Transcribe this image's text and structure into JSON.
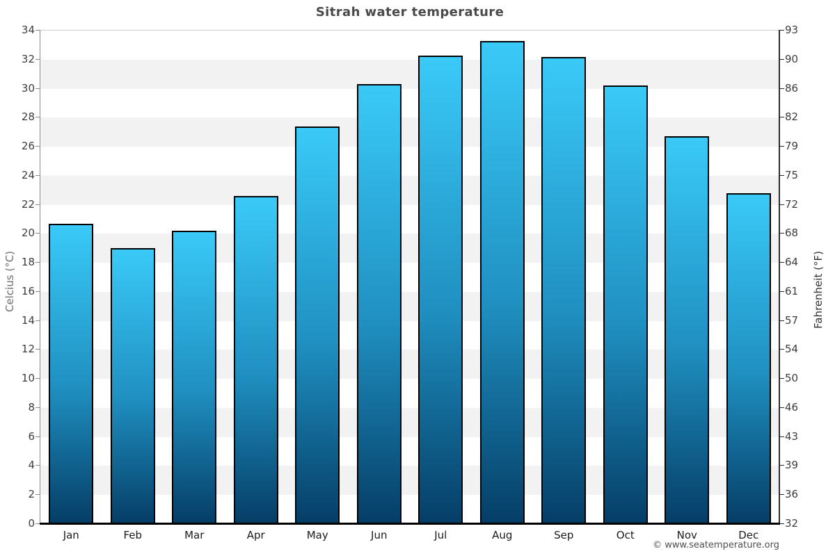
{
  "title": "Sitrah water temperature",
  "footer": {
    "credit": "© www.seatemperature.org"
  },
  "axes": {
    "left": {
      "label": "Celcius (°C)"
    },
    "right": {
      "label": "Fahrenheit (°F)"
    }
  },
  "colors": {
    "bar_gradient_top": "#3acaf8",
    "bar_gradient_mid": "#1f8fc0",
    "bar_gradient_bottom": "#053e67",
    "bar_border": "#000000",
    "band_gray": "#f2f2f2",
    "band_white": "#ffffff",
    "title_text": "#4a4a4a",
    "tick_text": "#3c3c3c",
    "bottom_axis": "#000000"
  },
  "chart_data": {
    "type": "bar",
    "title": "Sitrah water temperature",
    "categories": [
      "Jan",
      "Feb",
      "Mar",
      "Apr",
      "May",
      "Jun",
      "Jul",
      "Aug",
      "Sep",
      "Oct",
      "Nov",
      "Dec"
    ],
    "series": [
      {
        "name": "Water temperature (°C)",
        "values": [
          20.7,
          19.0,
          20.2,
          22.6,
          27.4,
          30.3,
          32.3,
          33.3,
          32.2,
          30.2,
          26.7,
          22.8
        ]
      }
    ],
    "xlabel": "",
    "ylabel_left": "Celcius (°C)",
    "ylabel_right": "Fahrenheit (°F)",
    "ylim": [
      0,
      34
    ],
    "y_tick_step": 2,
    "celsius_ticks": [
      34,
      32,
      30,
      28,
      26,
      24,
      22,
      20,
      18,
      16,
      14,
      12,
      10,
      8,
      6,
      4,
      2,
      0
    ],
    "fahrenheit_ticks": [
      93,
      90,
      86,
      82,
      79,
      75,
      72,
      68,
      64,
      61,
      57,
      54,
      50,
      46,
      43,
      39,
      36,
      32
    ],
    "grid": "alternating 2°C horizontal bands (white/light-gray), no vertical grid",
    "legend": "none",
    "bar_color": "cyan-to-navy vertical gradient per bar, black border"
  }
}
